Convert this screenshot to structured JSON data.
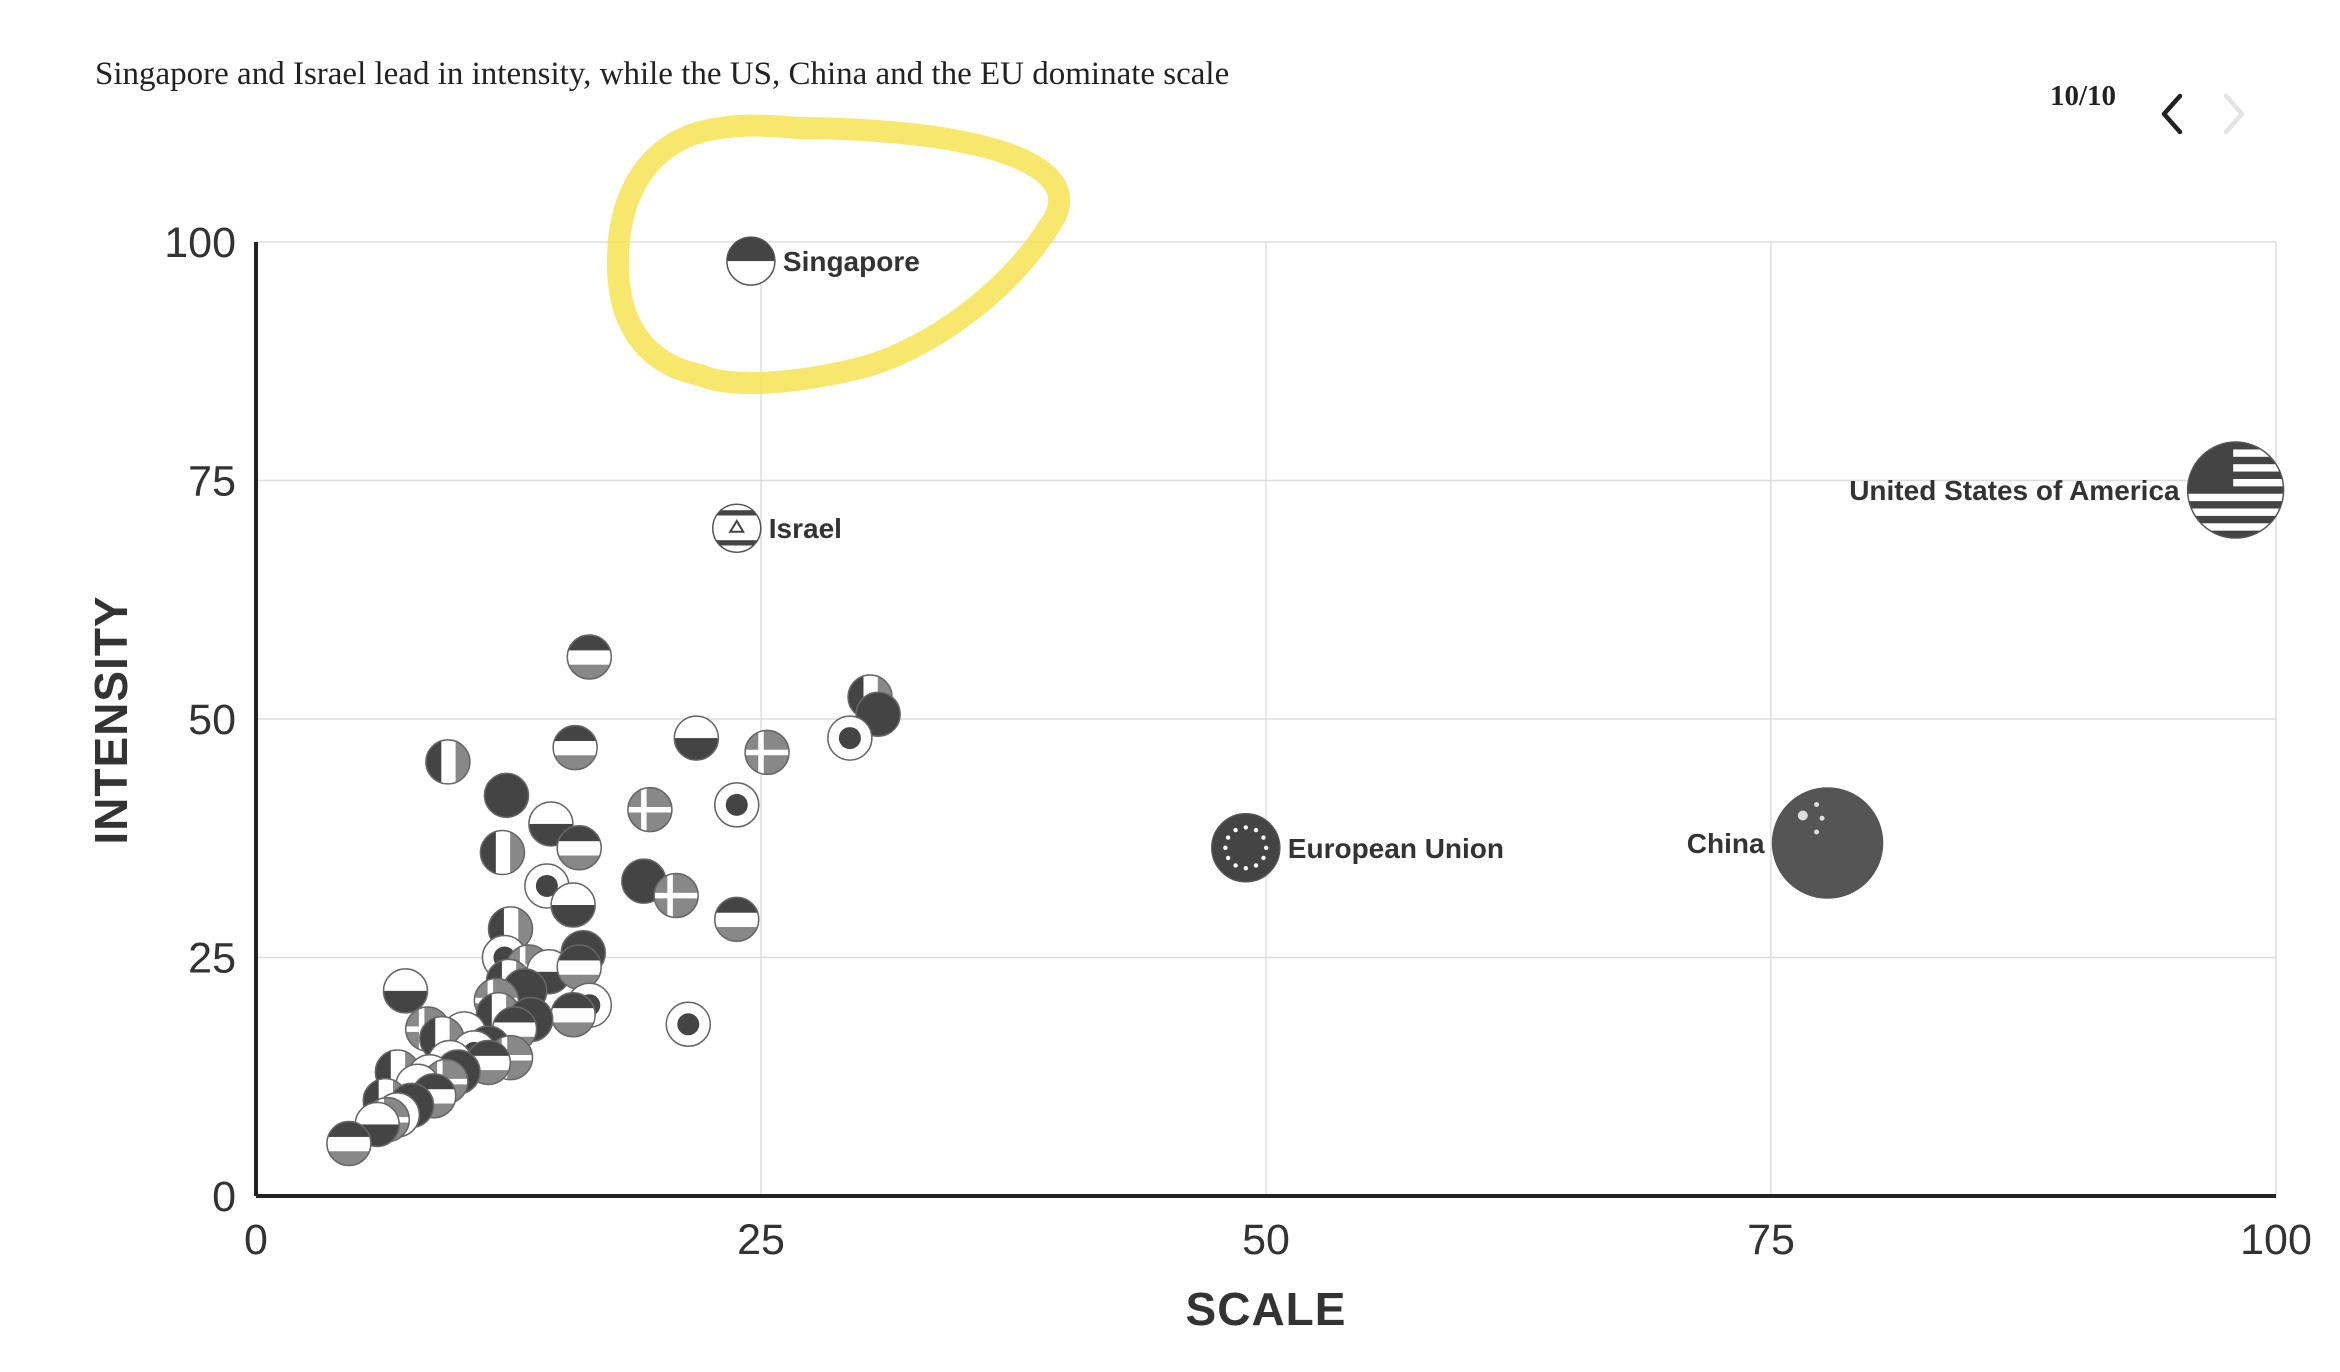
{
  "header": {
    "title": "Singapore and Israel lead in intensity, while the US, China and the EU dominate scale",
    "pager": "10/10"
  },
  "colors": {
    "highlight": "#f7e354",
    "flag_dark": "#444444",
    "flag_mid": "#888888",
    "grid": "#dddddd"
  },
  "chart_data": {
    "type": "scatter",
    "title": "Singapore and Israel lead in intensity, while the US, China and the EU dominate scale",
    "xlabel": "SCALE",
    "ylabel": "INTENSITY",
    "xlim": [
      0,
      100
    ],
    "ylim": [
      0,
      100
    ],
    "xticks": [
      0,
      25,
      50,
      75,
      100
    ],
    "yticks": [
      0,
      25,
      50,
      75,
      100
    ],
    "grid": true,
    "highlighted": "Singapore",
    "labeled_points": [
      {
        "name": "Singapore",
        "x": 24.5,
        "y": 98,
        "label": "Singapore",
        "label_side": "right"
      },
      {
        "name": "Israel",
        "x": 23.8,
        "y": 70,
        "label": "Israel",
        "label_side": "right"
      },
      {
        "name": "United States of America",
        "x": 98,
        "y": 74,
        "label": "United States of America",
        "label_side": "left"
      },
      {
        "name": "European Union",
        "x": 49,
        "y": 36.5,
        "label": "European Union",
        "label_side": "right"
      },
      {
        "name": "China",
        "x": 77.8,
        "y": 37,
        "label": "China",
        "label_side": "left"
      }
    ],
    "points": [
      {
        "x": 16.5,
        "y": 56.5
      },
      {
        "x": 30.4,
        "y": 52.3
      },
      {
        "x": 30.8,
        "y": 50.5
      },
      {
        "x": 29.4,
        "y": 48
      },
      {
        "x": 25.3,
        "y": 46.5
      },
      {
        "x": 21.8,
        "y": 48
      },
      {
        "x": 15.8,
        "y": 47
      },
      {
        "x": 9.5,
        "y": 45.5
      },
      {
        "x": 12.4,
        "y": 42
      },
      {
        "x": 23.8,
        "y": 41
      },
      {
        "x": 19.5,
        "y": 40.5
      },
      {
        "x": 14.6,
        "y": 39
      },
      {
        "x": 16.0,
        "y": 36.5
      },
      {
        "x": 12.2,
        "y": 36
      },
      {
        "x": 19.2,
        "y": 33
      },
      {
        "x": 14.4,
        "y": 32.5
      },
      {
        "x": 20.8,
        "y": 31.5
      },
      {
        "x": 15.7,
        "y": 30.5
      },
      {
        "x": 23.8,
        "y": 29
      },
      {
        "x": 12.6,
        "y": 28
      },
      {
        "x": 16.2,
        "y": 25.5
      },
      {
        "x": 12.3,
        "y": 25
      },
      {
        "x": 13.5,
        "y": 24
      },
      {
        "x": 14.5,
        "y": 23.5
      },
      {
        "x": 16.0,
        "y": 24
      },
      {
        "x": 12.5,
        "y": 22.5
      },
      {
        "x": 13.3,
        "y": 21.5
      },
      {
        "x": 16.5,
        "y": 20
      },
      {
        "x": 11.9,
        "y": 20.5
      },
      {
        "x": 7.4,
        "y": 21.5
      },
      {
        "x": 15.7,
        "y": 19
      },
      {
        "x": 12.0,
        "y": 19
      },
      {
        "x": 13.6,
        "y": 18.5
      },
      {
        "x": 21.4,
        "y": 18
      },
      {
        "x": 8.5,
        "y": 17.5
      },
      {
        "x": 10.3,
        "y": 17
      },
      {
        "x": 12.8,
        "y": 17.5
      },
      {
        "x": 9.2,
        "y": 16.5
      },
      {
        "x": 11.5,
        "y": 15.5
      },
      {
        "x": 10.8,
        "y": 15
      },
      {
        "x": 12.6,
        "y": 14.5
      },
      {
        "x": 9.6,
        "y": 14
      },
      {
        "x": 11.5,
        "y": 14
      },
      {
        "x": 7.0,
        "y": 13
      },
      {
        "x": 10.0,
        "y": 13
      },
      {
        "x": 8.6,
        "y": 12.5
      },
      {
        "x": 9.4,
        "y": 12
      },
      {
        "x": 8.0,
        "y": 11.5
      },
      {
        "x": 8.8,
        "y": 10.5
      },
      {
        "x": 6.4,
        "y": 10
      },
      {
        "x": 7.7,
        "y": 9.5
      },
      {
        "x": 7.0,
        "y": 8.5
      },
      {
        "x": 6.5,
        "y": 8
      },
      {
        "x": 6.0,
        "y": 7.5
      },
      {
        "x": 4.6,
        "y": 5.5
      }
    ]
  }
}
